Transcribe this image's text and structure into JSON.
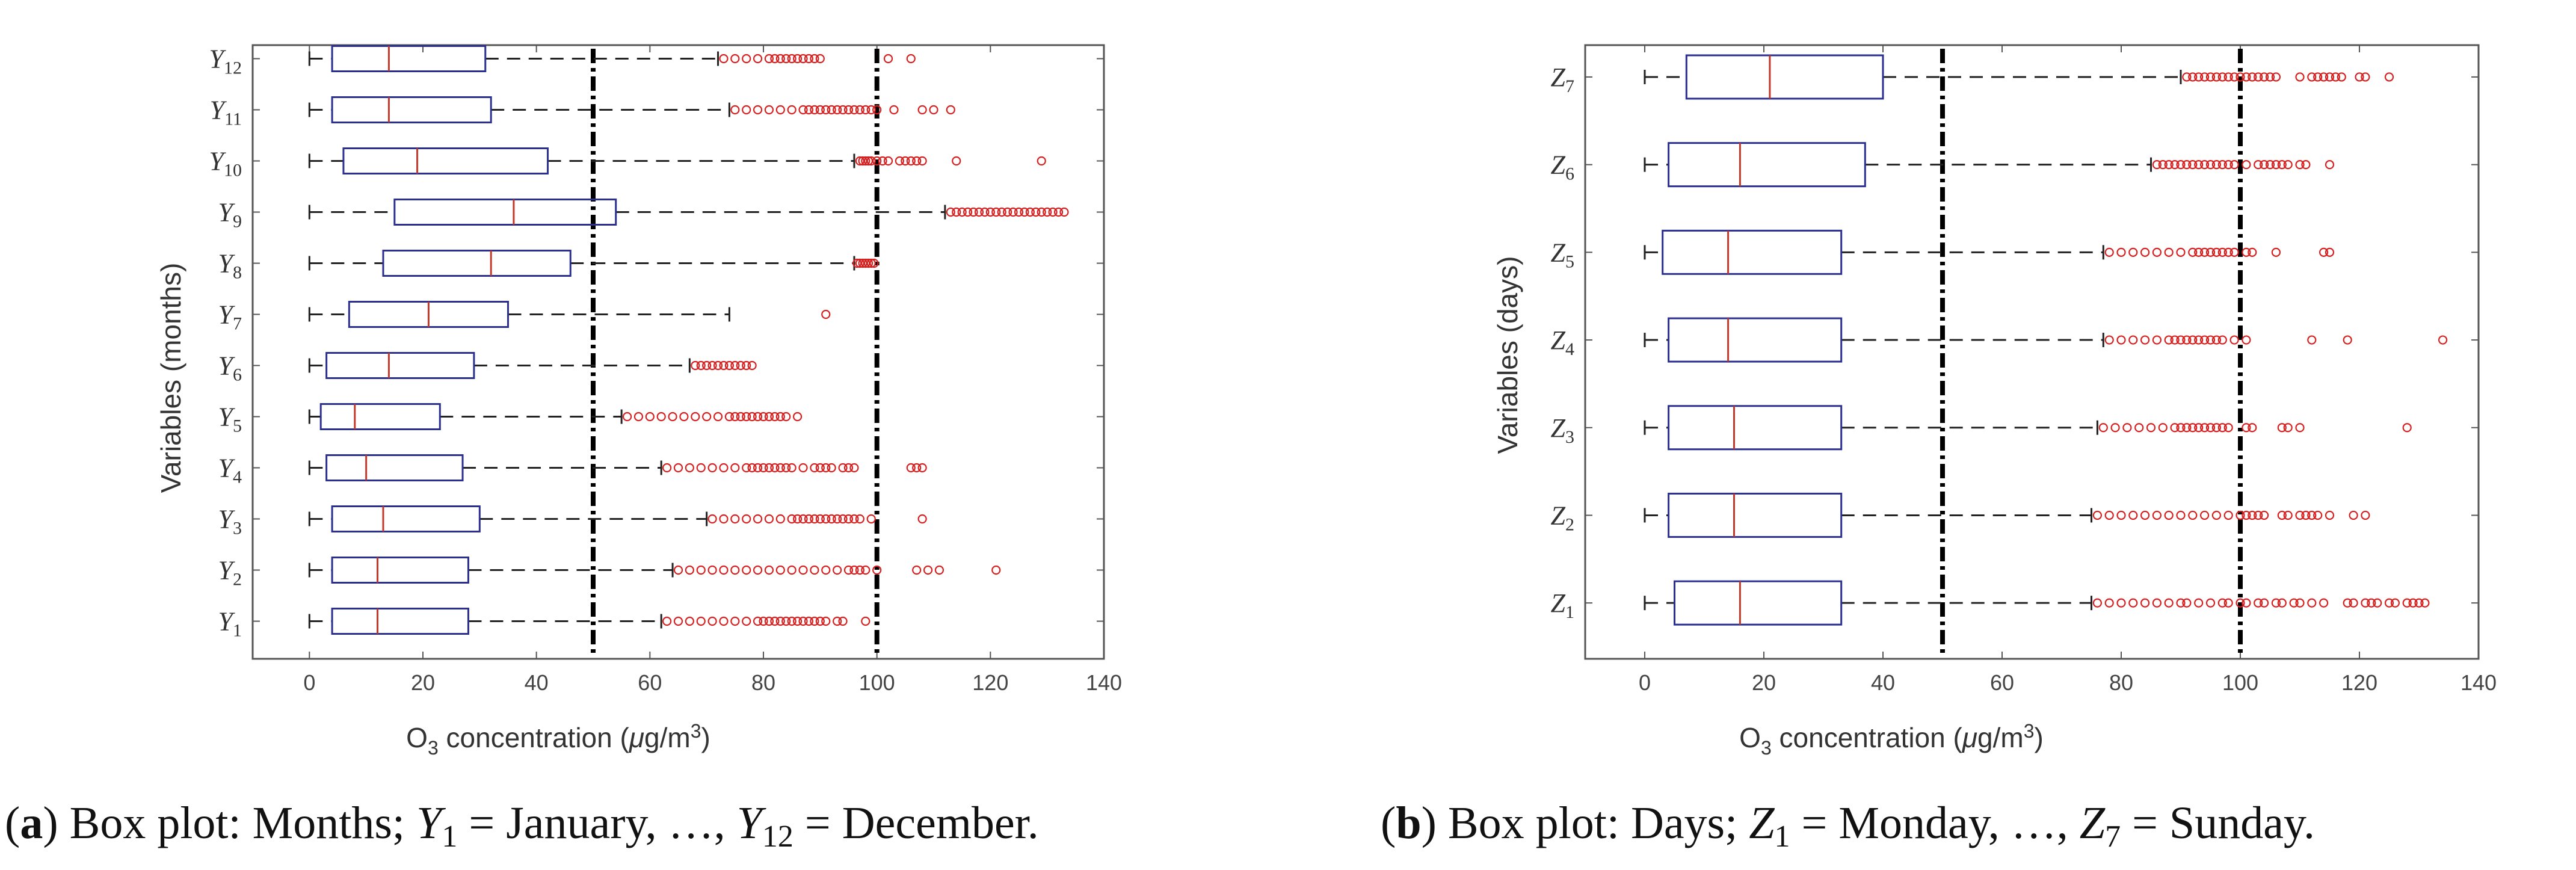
{
  "chart_data": [
    {
      "id": "a",
      "type": "boxplot",
      "orientation": "horizontal",
      "xlabel": "O3 concentration (μg/m3)",
      "xlabel_parts": {
        "prefix": "O",
        "sub": "3",
        "mid": " concentration (",
        "mu": "μ",
        "unit": "g/m",
        "sup": "3",
        "suffix": ")"
      },
      "ylabel": "Variables (months)",
      "xlim": [
        -10,
        140
      ],
      "xticks": [
        0,
        20,
        40,
        60,
        80,
        100,
        120,
        140
      ],
      "reference_lines": [
        50,
        100
      ],
      "categories": [
        {
          "name": "Y",
          "sub": "1",
          "whisker_low": 0,
          "q1": 4,
          "median": 12,
          "q3": 28,
          "whisker_high": 62,
          "outliers": [
            63,
            65,
            67,
            69,
            71,
            73,
            75,
            77,
            79,
            80,
            81,
            82,
            83,
            84,
            85,
            86,
            87,
            88,
            89,
            90,
            91,
            93,
            94,
            98
          ]
        },
        {
          "name": "Y",
          "sub": "2",
          "whisker_low": 0,
          "q1": 4,
          "median": 12,
          "q3": 28,
          "whisker_high": 64,
          "outliers": [
            65,
            67,
            69,
            71,
            73,
            75,
            77,
            79,
            81,
            83,
            85,
            87,
            89,
            91,
            93,
            95,
            96,
            97,
            98,
            100,
            107,
            109,
            111,
            121
          ]
        },
        {
          "name": "Y",
          "sub": "3",
          "whisker_low": 0,
          "q1": 4,
          "median": 13,
          "q3": 30,
          "whisker_high": 70,
          "outliers": [
            71,
            73,
            75,
            77,
            79,
            81,
            83,
            85,
            86,
            87,
            88,
            89,
            90,
            91,
            92,
            93,
            94,
            95,
            96,
            97,
            99,
            108
          ]
        },
        {
          "name": "Y",
          "sub": "4",
          "whisker_low": 0,
          "q1": 3,
          "median": 10,
          "q3": 27,
          "whisker_high": 62,
          "outliers": [
            63,
            65,
            67,
            69,
            71,
            73,
            75,
            77,
            78,
            79,
            80,
            81,
            82,
            83,
            84,
            85,
            87,
            89,
            90,
            91,
            92,
            94,
            95,
            96,
            106,
            107,
            108
          ]
        },
        {
          "name": "Y",
          "sub": "5",
          "whisker_low": 0,
          "q1": 2,
          "median": 8,
          "q3": 23,
          "whisker_high": 55,
          "outliers": [
            56,
            58,
            60,
            62,
            64,
            66,
            68,
            70,
            72,
            74,
            75,
            76,
            77,
            78,
            79,
            80,
            81,
            82,
            83,
            84,
            86
          ]
        },
        {
          "name": "Y",
          "sub": "6",
          "whisker_low": 0,
          "q1": 3,
          "median": 14,
          "q3": 29,
          "whisker_high": 67,
          "outliers": [
            68,
            69,
            70,
            71,
            72,
            73,
            74,
            75,
            76,
            77,
            78
          ]
        },
        {
          "name": "Y",
          "sub": "7",
          "whisker_low": 0,
          "q1": 7,
          "median": 21,
          "q3": 35,
          "whisker_high": 74,
          "outliers": [
            91
          ]
        },
        {
          "name": "Y",
          "sub": "8",
          "whisker_low": 0,
          "q1": 13,
          "median": 32,
          "q3": 46,
          "whisker_high": 96,
          "outliers": [
            96.5,
            97,
            97.5,
            98,
            98.5,
            99,
            99.5
          ]
        },
        {
          "name": "Y",
          "sub": "9",
          "whisker_low": 0,
          "q1": 15,
          "median": 36,
          "q3": 54,
          "whisker_high": 112,
          "outliers": [
            113,
            114,
            115,
            116,
            117,
            118,
            119,
            120,
            121,
            122,
            123,
            124,
            125,
            126,
            127,
            128,
            129,
            130,
            131,
            132,
            133
          ]
        },
        {
          "name": "Y",
          "sub": "10",
          "whisker_low": 0,
          "q1": 6,
          "median": 19,
          "q3": 42,
          "whisker_high": 96,
          "outliers": [
            97,
            97.5,
            98,
            98.5,
            99,
            100,
            101,
            102,
            104,
            105,
            106,
            107,
            108,
            114,
            129
          ]
        },
        {
          "name": "Y",
          "sub": "11",
          "whisker_low": 0,
          "q1": 4,
          "median": 14,
          "q3": 32,
          "whisker_high": 74,
          "outliers": [
            75,
            77,
            79,
            81,
            83,
            85,
            87,
            88,
            89,
            90,
            91,
            92,
            93,
            94,
            95,
            96,
            97,
            98,
            99,
            100,
            103,
            108,
            110,
            113
          ]
        },
        {
          "name": "Y",
          "sub": "12",
          "whisker_low": 0,
          "q1": 4,
          "median": 14,
          "q3": 31,
          "whisker_high": 72,
          "outliers": [
            73,
            75,
            77,
            79,
            81,
            82,
            83,
            84,
            85,
            86,
            87,
            88,
            89,
            90,
            102,
            106
          ]
        }
      ]
    },
    {
      "id": "b",
      "type": "boxplot",
      "orientation": "horizontal",
      "xlabel": "O3 concentration (μg/m3)",
      "xlabel_parts": {
        "prefix": "O",
        "sub": "3",
        "mid": " concentration (",
        "mu": "μ",
        "unit": "g/m",
        "sup": "3",
        "suffix": ")"
      },
      "ylabel": "Variables (days)",
      "xlim": [
        -10,
        140
      ],
      "xticks": [
        0,
        20,
        40,
        60,
        80,
        100,
        120,
        140
      ],
      "reference_lines": [
        50,
        100
      ],
      "categories": [
        {
          "name": "Z",
          "sub": "1",
          "whisker_low": 0,
          "q1": 5,
          "median": 16,
          "q3": 33,
          "whisker_high": 75,
          "outliers": [
            76,
            78,
            80,
            82,
            84,
            86,
            88,
            90,
            91,
            93,
            95,
            97,
            98,
            100,
            101,
            103,
            104,
            106,
            107,
            109,
            110,
            112,
            114,
            118,
            119,
            121,
            122,
            123,
            125,
            126,
            128,
            129,
            130,
            131
          ]
        },
        {
          "name": "Z",
          "sub": "2",
          "whisker_low": 0,
          "q1": 4,
          "median": 15,
          "q3": 33,
          "whisker_high": 75,
          "outliers": [
            76,
            78,
            80,
            82,
            84,
            86,
            88,
            90,
            92,
            94,
            96,
            98,
            100,
            101,
            102,
            103,
            104,
            107,
            108,
            110,
            111,
            112,
            113,
            115,
            119,
            121
          ]
        },
        {
          "name": "Z",
          "sub": "3",
          "whisker_low": 0,
          "q1": 4,
          "median": 15,
          "q3": 33,
          "whisker_high": 76,
          "outliers": [
            77,
            79,
            81,
            83,
            85,
            87,
            89,
            90,
            91,
            92,
            93,
            94,
            95,
            96,
            97,
            98,
            101,
            102,
            107,
            108,
            110,
            128
          ]
        },
        {
          "name": "Z",
          "sub": "4",
          "whisker_low": 0,
          "q1": 4,
          "median": 14,
          "q3": 33,
          "whisker_high": 77,
          "outliers": [
            78,
            80,
            82,
            84,
            86,
            88,
            89,
            90,
            91,
            92,
            93,
            94,
            95,
            96,
            97,
            99,
            101,
            112,
            118,
            134
          ]
        },
        {
          "name": "Z",
          "sub": "5",
          "whisker_low": 0,
          "q1": 3,
          "median": 14,
          "q3": 33,
          "whisker_high": 77,
          "outliers": [
            78,
            80,
            82,
            84,
            86,
            88,
            90,
            92,
            93,
            94,
            95,
            96,
            97,
            98,
            99,
            101,
            102,
            106,
            114,
            115
          ]
        },
        {
          "name": "Z",
          "sub": "6",
          "whisker_low": 0,
          "q1": 4,
          "median": 16,
          "q3": 37,
          "whisker_high": 85,
          "outliers": [
            86,
            87,
            88,
            89,
            90,
            91,
            92,
            93,
            94,
            95,
            96,
            97,
            98,
            99,
            101,
            103,
            104,
            105,
            106,
            107,
            108,
            110,
            111,
            115
          ]
        },
        {
          "name": "Z",
          "sub": "7",
          "whisker_low": 0,
          "q1": 7,
          "median": 21,
          "q3": 40,
          "whisker_high": 90,
          "outliers": [
            91,
            92,
            93,
            94,
            95,
            96,
            97,
            98,
            99,
            100,
            101,
            102,
            103,
            104,
            105,
            106,
            110,
            112,
            113,
            114,
            115,
            116,
            117,
            120,
            121,
            125
          ]
        }
      ]
    }
  ],
  "captions": {
    "a": {
      "label": "a",
      "text_before": " Box plot: Months; ",
      "var1": "Y",
      "sub1": "1",
      "eq1": " = January, …, ",
      "var2": "Y",
      "sub2": "12",
      "eq2": " = December."
    },
    "b": {
      "label": "b",
      "text_before": " Box plot: Days; ",
      "var1": "Z",
      "sub1": "1",
      "eq1": " = Monday, …, ",
      "var2": "Z",
      "sub2": "7",
      "eq2": " = Sunday."
    }
  },
  "colors": {
    "box": "#2b2f8f",
    "median": "#c0392b",
    "outlier": "#d62020",
    "whisker": "#222222",
    "refline": "#000000",
    "axes": "#555555"
  }
}
